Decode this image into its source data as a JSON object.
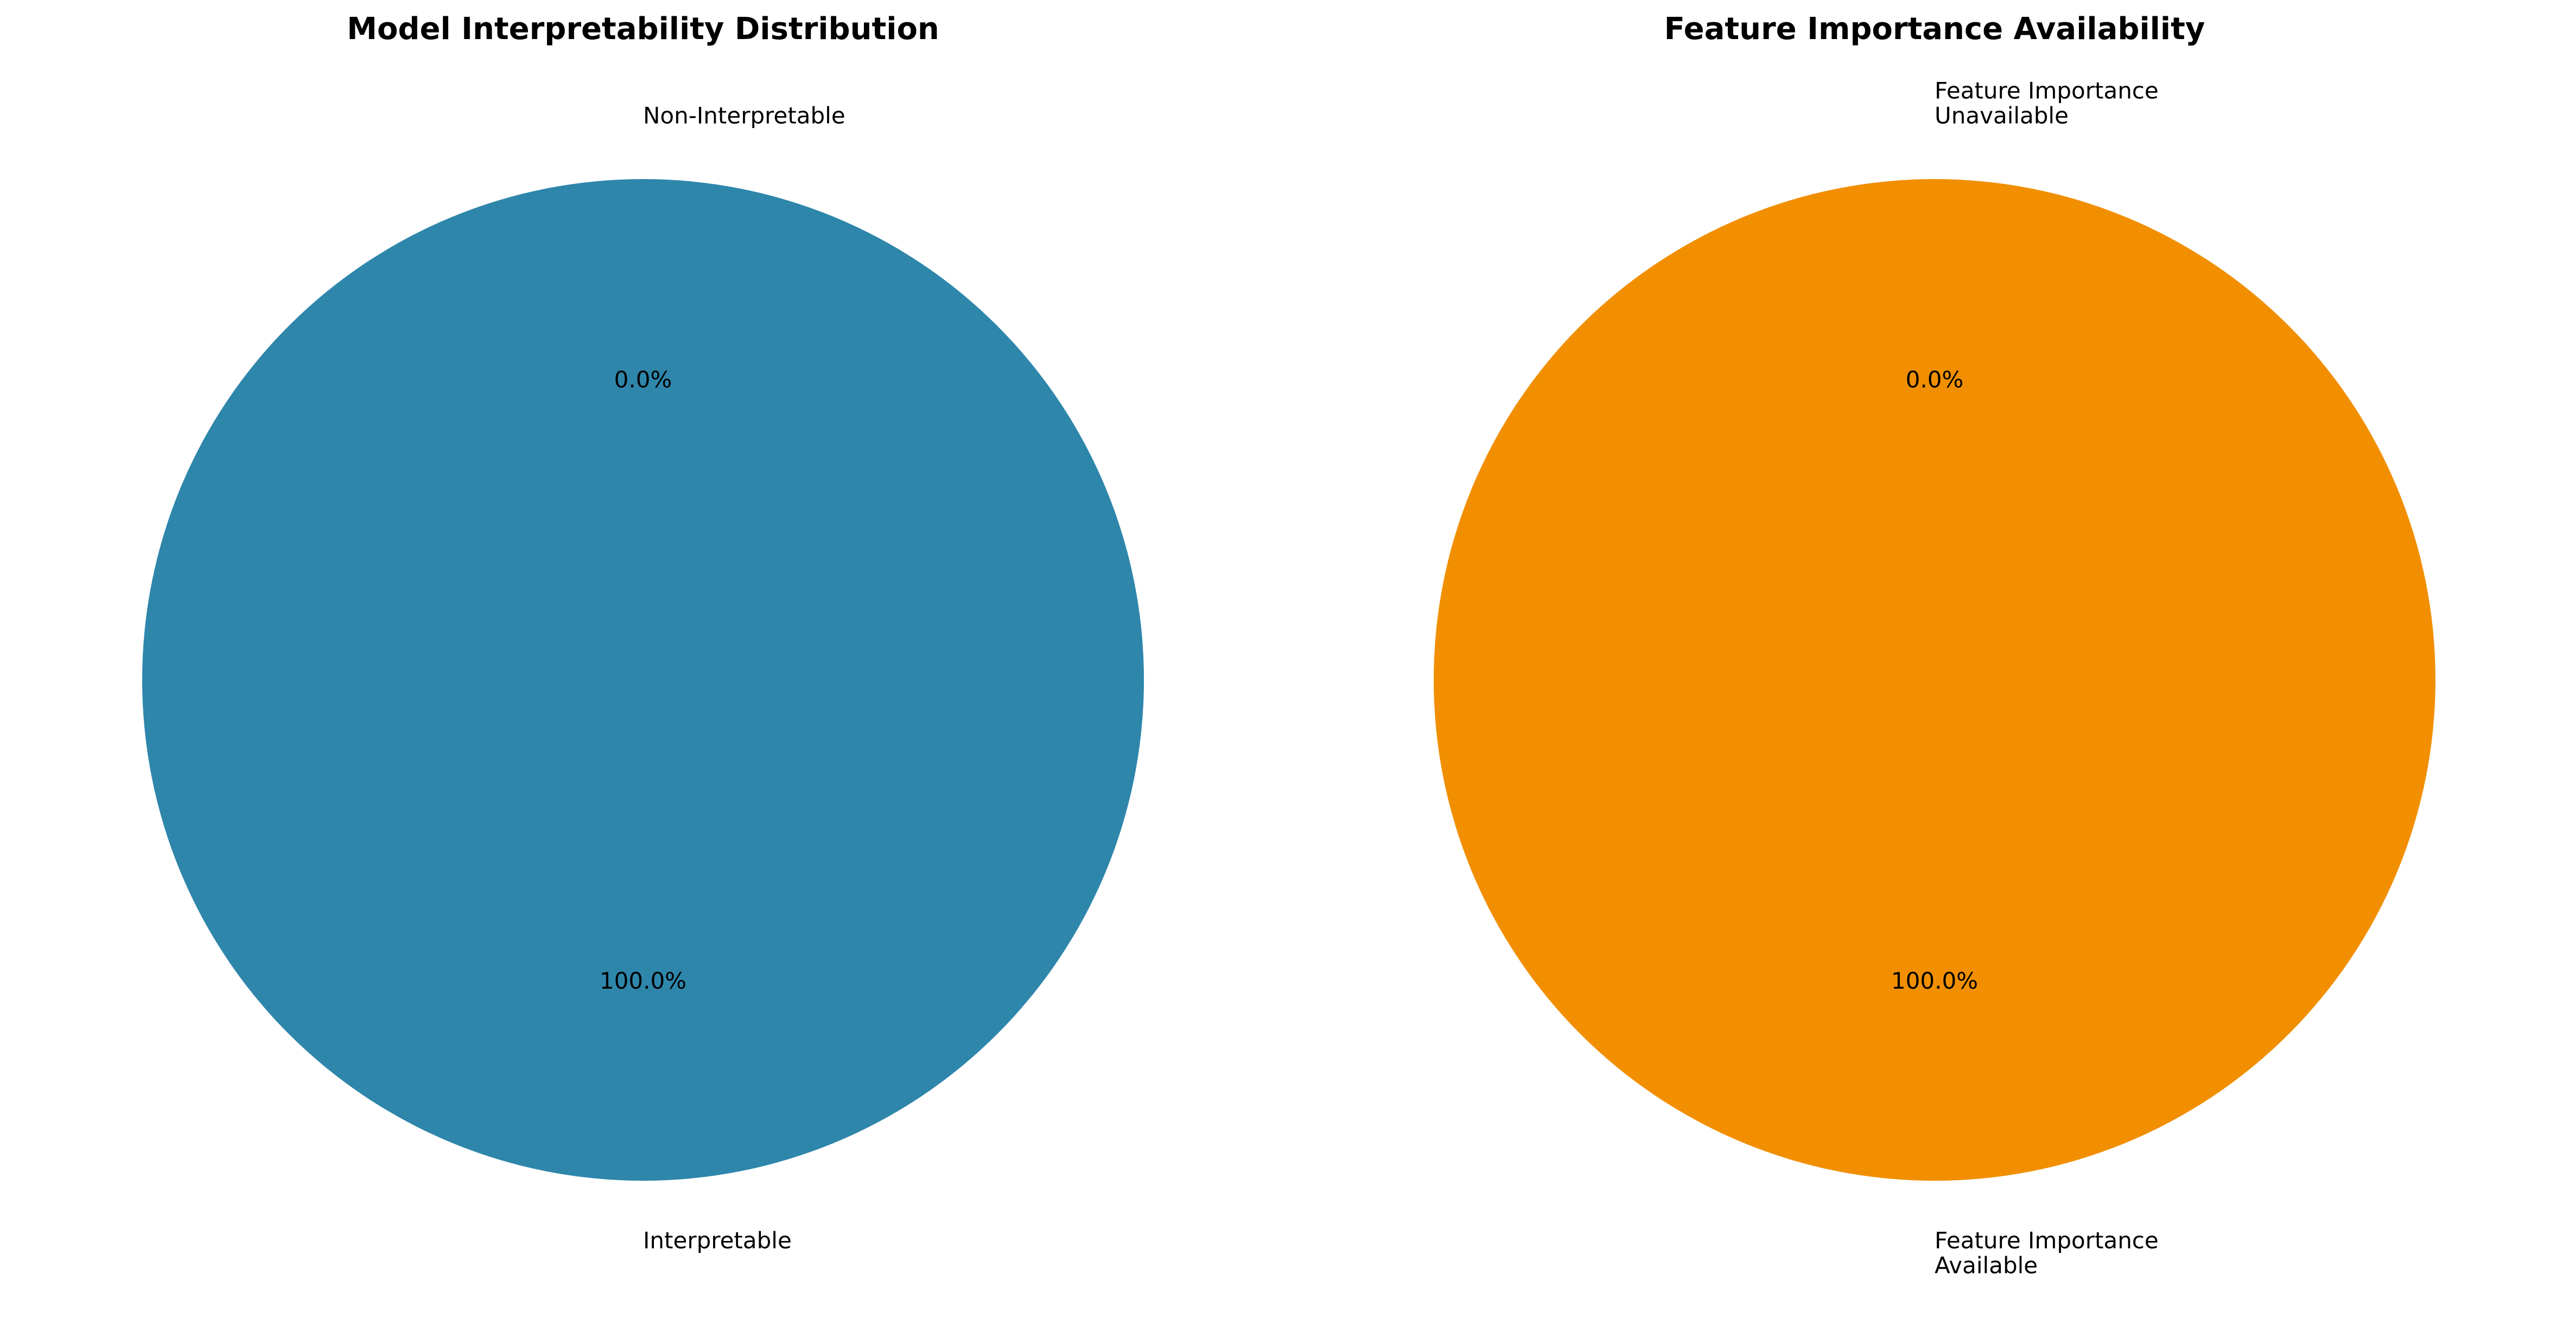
{
  "chart_data": [
    {
      "type": "pie",
      "title": "Model Interpretability Distribution",
      "slices": [
        {
          "label": "Interpretable",
          "value": 100.0,
          "pct_label": "100.0%",
          "color": "#2e86ab"
        },
        {
          "label": "Non-Interpretable",
          "value": 0.0,
          "pct_label": "0.0%",
          "color": "#a23b72"
        }
      ],
      "legend": "none"
    },
    {
      "type": "pie",
      "title": "Feature Importance Availability",
      "slices": [
        {
          "label": "Feature Importance\nAvailable",
          "value": 100.0,
          "pct_label": "100.0%",
          "color": "#f18f01"
        },
        {
          "label": "Feature Importance\nUnavailable",
          "value": 0.0,
          "pct_label": "0.0%",
          "color": "#c73e1d"
        }
      ],
      "legend": "none"
    }
  ]
}
